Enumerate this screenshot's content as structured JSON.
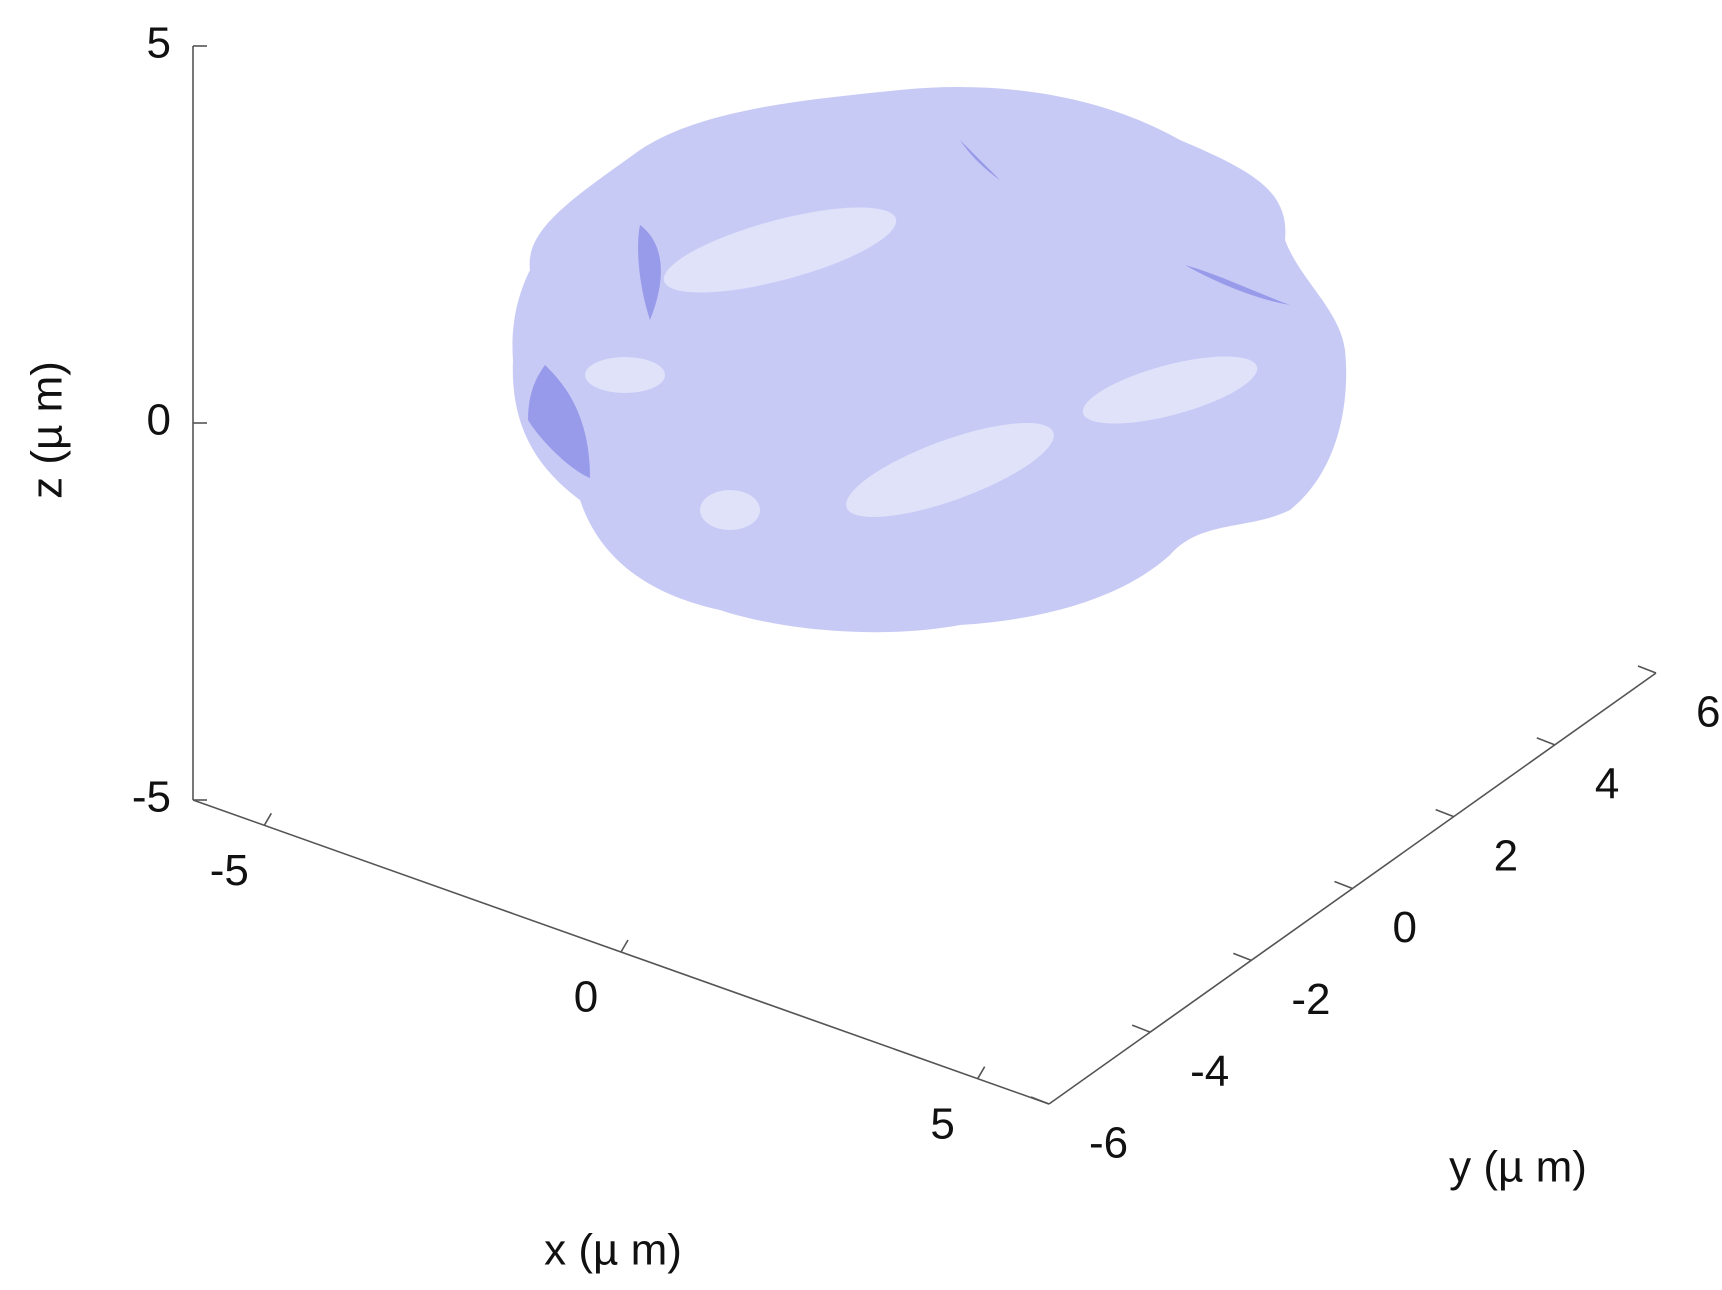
{
  "chart_data": {
    "type": "surface3d",
    "xlabel": "x (µ m)",
    "ylabel": "y (µ m)",
    "zlabel": "z (µ m)",
    "xlim": [
      -6,
      6
    ],
    "xticks": [
      -5,
      0,
      5
    ],
    "ylim": [
      -6,
      6
    ],
    "yticks": [
      -6,
      -4,
      -2,
      0,
      2,
      4,
      6
    ],
    "zlim": [
      -5,
      5
    ],
    "zticks": [
      -5,
      0,
      5
    ],
    "color": "#c5c7f6"
  }
}
